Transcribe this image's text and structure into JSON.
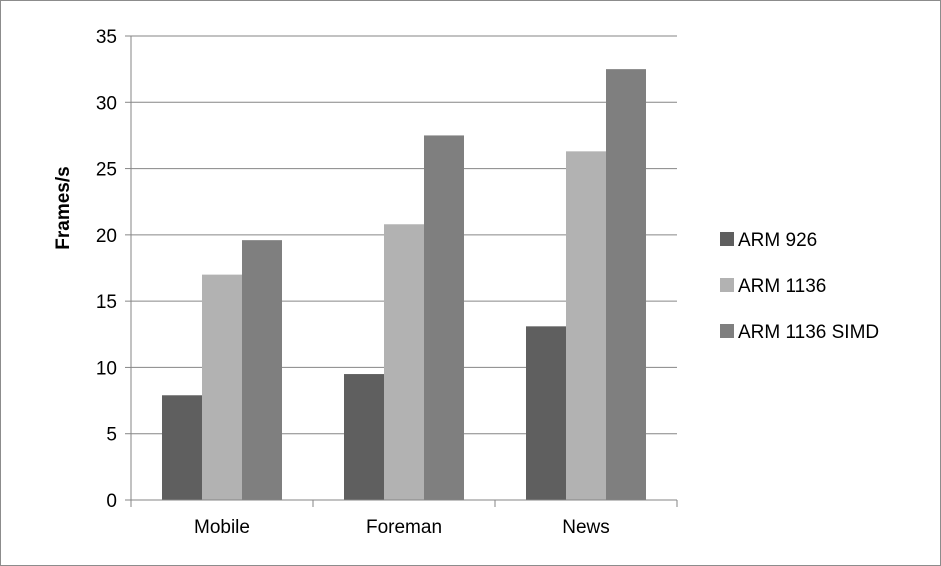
{
  "chart_data": {
    "type": "bar",
    "title": "",
    "xlabel": "",
    "ylabel": "Frames/s",
    "categories": [
      "Mobile",
      "Foreman",
      "News"
    ],
    "series": [
      {
        "name": "ARM 926",
        "values": [
          7.9,
          9.5,
          13.1
        ],
        "color": "#5f5f5f"
      },
      {
        "name": "ARM 1136",
        "values": [
          17.0,
          20.8,
          26.3
        ],
        "color": "#b2b2b2"
      },
      {
        "name": "ARM 1136 SIMD",
        "values": [
          19.6,
          27.5,
          32.5
        ],
        "color": "#7f7f7f"
      }
    ],
    "ylim": [
      0,
      35
    ],
    "yticks": [
      "0",
      "5",
      "10",
      "15",
      "20",
      "25",
      "30",
      "35"
    ],
    "grid": true,
    "legend_position": "right"
  }
}
